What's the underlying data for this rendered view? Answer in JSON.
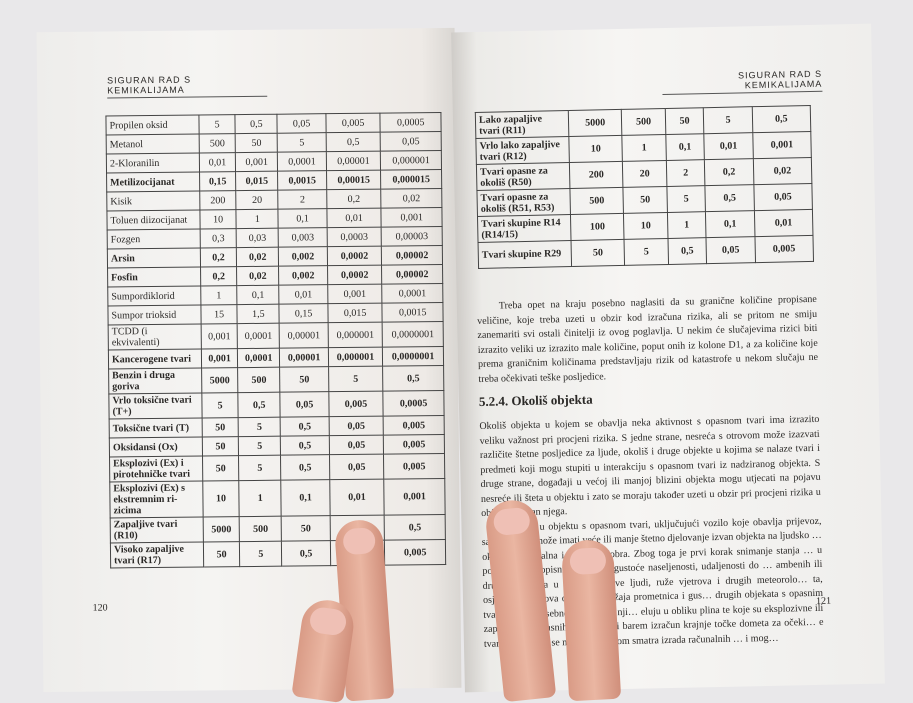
{
  "left_page": {
    "header": "Siguran rad s kemikalijama",
    "page_number": "120",
    "table": [
      {
        "name": "Propilen oksid",
        "values": [
          "5",
          "0,5",
          "0,05",
          "0,005",
          "0,0005"
        ],
        "bold": false
      },
      {
        "name": "Metanol",
        "values": [
          "500",
          "50",
          "5",
          "0,5",
          "0,05"
        ],
        "bold": false
      },
      {
        "name": "2-Kloranilin",
        "values": [
          "0,01",
          "0,001",
          "0,0001",
          "0,00001",
          "0,000001"
        ],
        "bold": false
      },
      {
        "name": "Metilizocijanat",
        "values": [
          "0,15",
          "0,015",
          "0,0015",
          "0,00015",
          "0,000015"
        ],
        "bold": true
      },
      {
        "name": "Kisik",
        "values": [
          "200",
          "20",
          "2",
          "0,2",
          "0,02"
        ],
        "bold": false
      },
      {
        "name": "Toluen diizocijanat",
        "values": [
          "10",
          "1",
          "0,1",
          "0,01",
          "0,001"
        ],
        "bold": false
      },
      {
        "name": "Fozgen",
        "values": [
          "0,3",
          "0,03",
          "0,003",
          "0,0003",
          "0,00003"
        ],
        "bold": false
      },
      {
        "name": "Arsin",
        "values": [
          "0,2",
          "0,02",
          "0,002",
          "0,0002",
          "0,00002"
        ],
        "bold": true
      },
      {
        "name": "Fosfin",
        "values": [
          "0,2",
          "0,02",
          "0,002",
          "0,0002",
          "0,00002"
        ],
        "bold": true
      },
      {
        "name": "Sumpordiklorid",
        "values": [
          "1",
          "0,1",
          "0,01",
          "0,001",
          "0,0001"
        ],
        "bold": false
      },
      {
        "name": "Sumpor trioksid",
        "values": [
          "15",
          "1,5",
          "0,15",
          "0,015",
          "0,0015"
        ],
        "bold": false
      },
      {
        "name": "TCDD (i ekvivalenti)",
        "values": [
          "0,001",
          "0,0001",
          "0,00001",
          "0,000001",
          "0,0000001"
        ],
        "bold": false
      },
      {
        "name": "Kancerogene tvari",
        "values": [
          "0,001",
          "0,0001",
          "0,00001",
          "0,000001",
          "0,0000001"
        ],
        "bold": true
      },
      {
        "name": "Benzin i druga goriva",
        "values": [
          "5000",
          "500",
          "50",
          "5",
          "0,5"
        ],
        "bold": true
      },
      {
        "name": "Vrlo toksične tvari (T+)",
        "values": [
          "5",
          "0,5",
          "0,05",
          "0,005",
          "0,0005"
        ],
        "bold": true
      },
      {
        "name": "Toksične tvari (T)",
        "values": [
          "50",
          "5",
          "0,5",
          "0,05",
          "0,005"
        ],
        "bold": true
      },
      {
        "name": "Oksidansi (Ox)",
        "values": [
          "50",
          "5",
          "0,5",
          "0,05",
          "0,005"
        ],
        "bold": true
      },
      {
        "name": "Eksplozivi (Ex) i pirotehničke tvari",
        "values": [
          "50",
          "5",
          "0,5",
          "0,05",
          "0,005"
        ],
        "bold": true
      },
      {
        "name": "Eksplozivi (Ex) s ekstremnim ri-zicima",
        "values": [
          "10",
          "1",
          "0,1",
          "0,01",
          "0,001"
        ],
        "bold": true
      },
      {
        "name": "Zapaljive tvari (R10)",
        "values": [
          "5000",
          "500",
          "50",
          "",
          "0,5"
        ],
        "bold": true
      },
      {
        "name": "Visoko zapaljive tvari (R17)",
        "values": [
          "50",
          "5",
          "0,5",
          "",
          "0,005"
        ],
        "bold": true
      }
    ]
  },
  "right_page": {
    "header": "Siguran rad s kemikalijama",
    "page_number": "121",
    "table": [
      {
        "name": "Lako zapaljive tvari (R11)",
        "values": [
          "5000",
          "500",
          "50",
          "5",
          "0,5"
        ]
      },
      {
        "name": "Vrlo lako zapaljive tvari (R12)",
        "values": [
          "10",
          "1",
          "0,1",
          "0,01",
          "0,001"
        ]
      },
      {
        "name": "Tvari opasne za okoliš (R50)",
        "values": [
          "200",
          "20",
          "2",
          "0,2",
          "0,02"
        ]
      },
      {
        "name": "Tvari opasne za okoliš (R51, R53)",
        "values": [
          "500",
          "50",
          "5",
          "0,5",
          "0,05"
        ]
      },
      {
        "name": "Tvari skupine R14 (R14/15)",
        "values": [
          "100",
          "10",
          "1",
          "0,1",
          "0,01"
        ]
      },
      {
        "name": "Tvari skupine R29",
        "values": [
          "50",
          "5",
          "0,5",
          "0,05",
          "0,005"
        ]
      }
    ],
    "paragraph1": "Treba opet na kraju posebno naglasiti da su granične količine propisane veličine, koje treba uzeti u obzir kod izračuna rizika, ali se pritom ne smiju zanemariti svi ostali činitelji iz ovog poglavlja. U nekim će slučajevima rizici biti izrazito veliki uz izrazito male količine, poput onih iz kolone D1, a za količine koje prema graničnim količinama predstavljaju rizik od katastrofe u nekom slučaju ne treba očekivati teške posljedice.",
    "section_title": "5.2.4. Okoliš objekta",
    "paragraph2": "Okoliš objekta u kojem se obavlja neka aktivnost s opasnom tvari ima izrazito veliku važnost pri procjeni rizika. S jedne strane, nesreća s otrovom može izazvati različite štetne posljedice za ljude, okoliš i druge objekte u kojima se nalaze tvari i predmeti koji mogu stupiti u interakciju s opasnom tvari iz nadziranog objekta. S druge strane, događaji u većoj ili manjoj blizini objekta mogu utjecati na pojavu nesreće ili šteta u objektu i zato se moraju također uzeti u obzir pri procjeni rizika u objektu i izvan njega.",
    "paragraph3": "Nesreća u objektu s opasnom tvari, uključujući vozilo koje obavlja prijevoz, sa… sigurno može imati veće ili manje štetno djelovanje izvan objekta na ljudsko … okoliš, materijalna i kulturna dobra. Zbog toga je prvi korak snimanje stanja … u pogledu zemljopisnih obilježja, gustoće naseljenosti, udaljenosti do … ambenih ili drugih objekata u kojima borave ljudi, ruže vjetrova i drugih meteorolo… ta, osjetljivih dijelova okoliša, položaja prometnica i gus… drugih objekata s opasnim tvarima, itd. Posebno je to … na nji… eluju u obliku plina te koje su eksplozivne ili zapaljive … opasnih … a obaviti barem izračun krajnje točke dometa za očeki… e tvari … reće, ali se mnogo važnijom smatra izrada računalnih … i mog…"
  }
}
